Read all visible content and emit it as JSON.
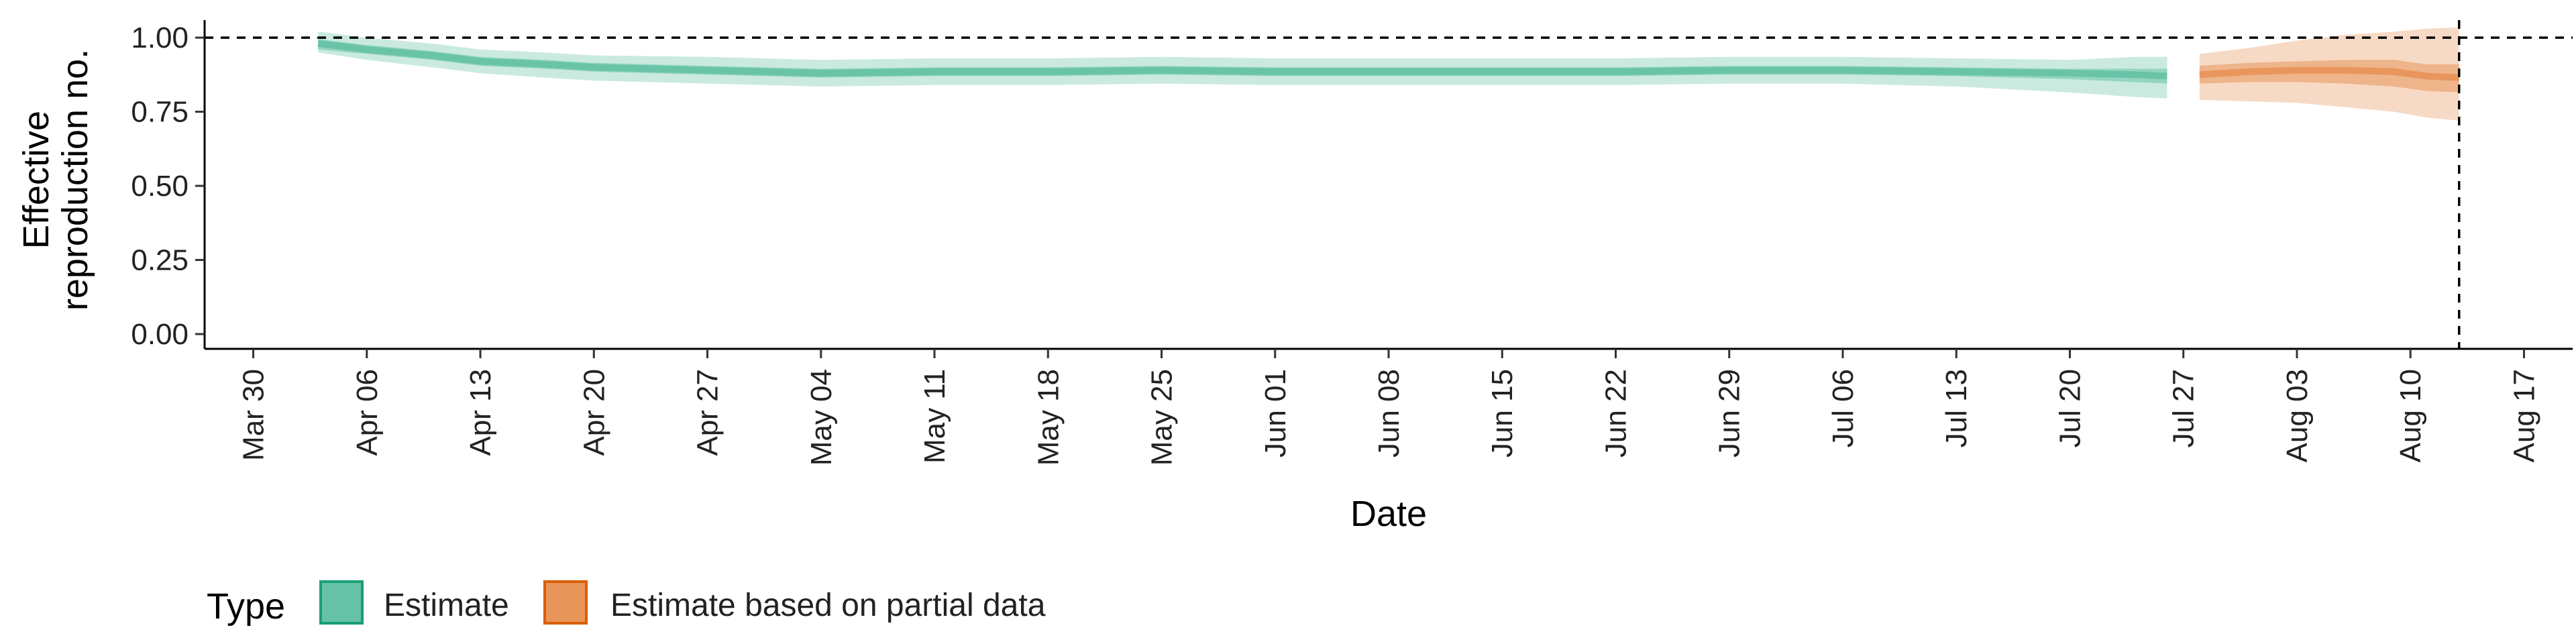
{
  "chart_data": {
    "type": "area",
    "xlabel": "Date",
    "ylabel": [
      "Effective",
      "reproduction no."
    ],
    "ylim": [
      0,
      1.05
    ],
    "y_ticks": [
      0.0,
      0.25,
      0.5,
      0.75,
      1.0
    ],
    "y_tick_labels": [
      "0.00",
      "0.25",
      "0.50",
      "0.75",
      "1.00"
    ],
    "xlim": [
      "2020-03-27",
      "2020-08-20"
    ],
    "x_ticks": [
      "2020-03-30",
      "2020-04-06",
      "2020-04-13",
      "2020-04-20",
      "2020-04-27",
      "2020-05-04",
      "2020-05-11",
      "2020-05-18",
      "2020-05-25",
      "2020-06-01",
      "2020-06-08",
      "2020-06-15",
      "2020-06-22",
      "2020-06-29",
      "2020-07-06",
      "2020-07-13",
      "2020-07-20",
      "2020-07-27",
      "2020-08-03",
      "2020-08-10",
      "2020-08-17"
    ],
    "x_tick_labels": [
      "Mar 30",
      "Apr 06",
      "Apr 13",
      "Apr 20",
      "Apr 27",
      "May 04",
      "May 11",
      "May 18",
      "May 25",
      "Jun 01",
      "Jun 08",
      "Jun 15",
      "Jun 22",
      "Jun 29",
      "Jul 06",
      "Jul 13",
      "Jul 20",
      "Jul 27",
      "Aug 03",
      "Aug 10",
      "Aug 17"
    ],
    "reference_line_y": 1.0,
    "reference_line_x": "2020-08-13",
    "grid": false,
    "legend": {
      "title": "Type",
      "placement": "bottom-left",
      "entries": [
        "Estimate",
        "Estimate based on partial data"
      ]
    },
    "series": [
      {
        "name": "Estimate",
        "fill_color": "#66c2a5",
        "edge_color": "#1b9e77",
        "x": [
          "2020-04-03",
          "2020-04-06",
          "2020-04-10",
          "2020-04-13",
          "2020-04-17",
          "2020-04-20",
          "2020-04-27",
          "2020-05-04",
          "2020-05-11",
          "2020-05-18",
          "2020-05-25",
          "2020-06-01",
          "2020-06-08",
          "2020-06-15",
          "2020-06-22",
          "2020-06-29",
          "2020-07-06",
          "2020-07-13",
          "2020-07-20",
          "2020-07-24",
          "2020-07-26"
        ],
        "median": [
          0.98,
          0.96,
          0.94,
          0.92,
          0.91,
          0.9,
          0.89,
          0.88,
          0.885,
          0.885,
          0.89,
          0.885,
          0.885,
          0.885,
          0.885,
          0.89,
          0.89,
          0.885,
          0.88,
          0.875,
          0.87
        ],
        "lower_50": [
          0.96,
          0.945,
          0.925,
          0.905,
          0.895,
          0.885,
          0.875,
          0.865,
          0.87,
          0.87,
          0.875,
          0.87,
          0.87,
          0.87,
          0.87,
          0.875,
          0.875,
          0.87,
          0.86,
          0.85,
          0.845
        ],
        "upper_50": [
          0.995,
          0.975,
          0.955,
          0.935,
          0.925,
          0.915,
          0.905,
          0.895,
          0.9,
          0.9,
          0.905,
          0.9,
          0.9,
          0.9,
          0.9,
          0.905,
          0.905,
          0.9,
          0.895,
          0.895,
          0.895
        ],
        "lower_90": [
          0.95,
          0.925,
          0.9,
          0.88,
          0.865,
          0.855,
          0.845,
          0.835,
          0.84,
          0.84,
          0.845,
          0.84,
          0.84,
          0.84,
          0.84,
          0.845,
          0.845,
          0.835,
          0.815,
          0.8,
          0.795
        ],
        "upper_90": [
          1.02,
          1.0,
          0.98,
          0.96,
          0.95,
          0.94,
          0.935,
          0.925,
          0.93,
          0.93,
          0.935,
          0.93,
          0.93,
          0.93,
          0.93,
          0.935,
          0.935,
          0.93,
          0.925,
          0.935,
          0.935
        ]
      },
      {
        "name": "Estimate based on partial data",
        "fill_color": "#e8955a",
        "edge_color": "#d95f02",
        "x": [
          "2020-07-28",
          "2020-07-31",
          "2020-08-03",
          "2020-08-06",
          "2020-08-09",
          "2020-08-11",
          "2020-08-13"
        ],
        "median": [
          0.875,
          0.885,
          0.89,
          0.89,
          0.885,
          0.87,
          0.865
        ],
        "lower_50": [
          0.845,
          0.85,
          0.85,
          0.845,
          0.835,
          0.82,
          0.815
        ],
        "upper_50": [
          0.905,
          0.915,
          0.92,
          0.925,
          0.925,
          0.91,
          0.91
        ],
        "lower_90": [
          0.79,
          0.785,
          0.78,
          0.765,
          0.75,
          0.73,
          0.72
        ],
        "upper_90": [
          0.945,
          0.965,
          0.99,
          1.01,
          1.02,
          1.03,
          1.035
        ]
      }
    ]
  }
}
